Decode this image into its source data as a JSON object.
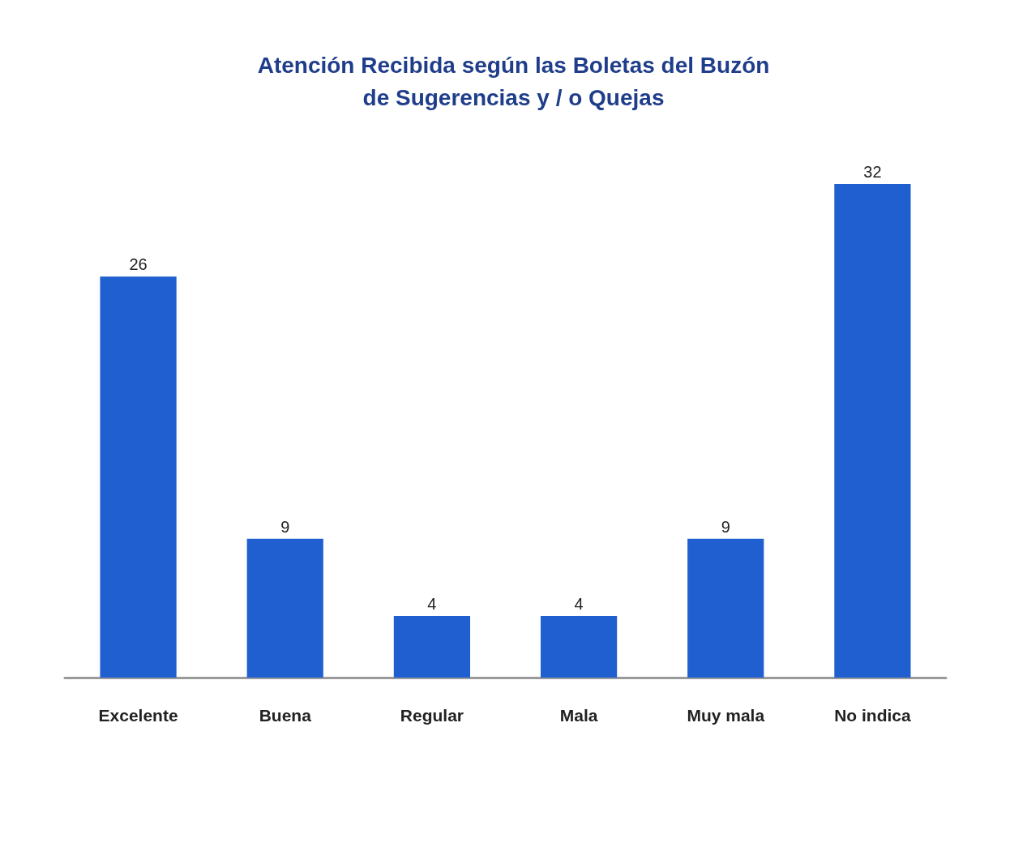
{
  "chart_data": {
    "type": "bar",
    "title": "Atención Recibida según las Boletas del Buzón\nde Sugerencias y / o Quejas",
    "categories": [
      "Excelente",
      "Buena",
      "Regular",
      "Mala",
      "Muy mala",
      "No indica"
    ],
    "values": [
      26,
      9,
      4,
      4,
      9,
      32
    ],
    "color": "#1f5fd0",
    "data_labels": true,
    "grid": false
  }
}
